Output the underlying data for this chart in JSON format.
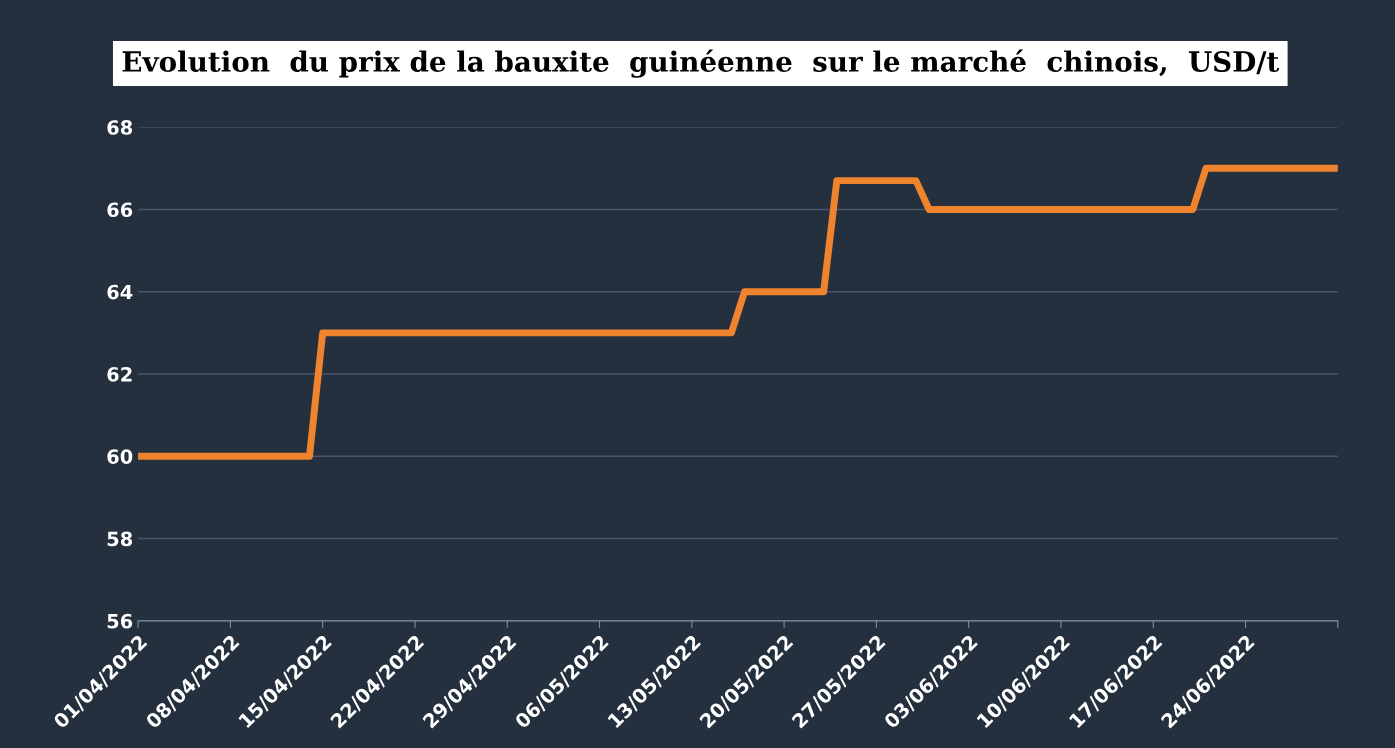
{
  "chart_data": {
    "type": "line",
    "title": "Evolution  du prix de la bauxite  guinéenne  sur le marché  chinois,  USD/t",
    "x": [
      "2022-04-01",
      "2022-04-14",
      "2022-04-15",
      "2022-05-16",
      "2022-05-17",
      "2022-05-23",
      "2022-05-24",
      "2022-05-30",
      "2022-05-31",
      "2022-06-20",
      "2022-06-21",
      "2022-07-01"
    ],
    "series": [
      {
        "color": "#f0832e",
        "values": [
          60,
          60,
          63,
          63,
          64,
          64,
          66.7,
          66.7,
          66,
          66,
          67,
          67
        ]
      }
    ],
    "xlim": [
      "2022-04-01",
      "2022-07-01"
    ],
    "xticks": [
      {
        "value": "2022-04-01",
        "label": "01/04/2022"
      },
      {
        "value": "2022-04-08",
        "label": "08/04/2022"
      },
      {
        "value": "2022-04-15",
        "label": "15/04/2022"
      },
      {
        "value": "2022-04-22",
        "label": "22/04/2022"
      },
      {
        "value": "2022-04-29",
        "label": "29/04/2022"
      },
      {
        "value": "2022-05-06",
        "label": "06/05/2022"
      },
      {
        "value": "2022-05-13",
        "label": "13/05/2022"
      },
      {
        "value": "2022-05-20",
        "label": "20/05/2022"
      },
      {
        "value": "2022-05-27",
        "label": "27/05/2022"
      },
      {
        "value": "2022-06-03",
        "label": "03/06/2022"
      },
      {
        "value": "2022-06-10",
        "label": "10/06/2022"
      },
      {
        "value": "2022-06-17",
        "label": "17/06/2022"
      },
      {
        "value": "2022-06-24",
        "label": "24/06/2022"
      },
      {
        "value": "2022-07-01",
        "label": null
      }
    ],
    "ylim": [
      56,
      68
    ],
    "yticks": [
      56,
      58,
      60,
      62,
      64,
      66,
      68
    ],
    "grid": "y",
    "marker": "none",
    "line_style": "solid"
  }
}
